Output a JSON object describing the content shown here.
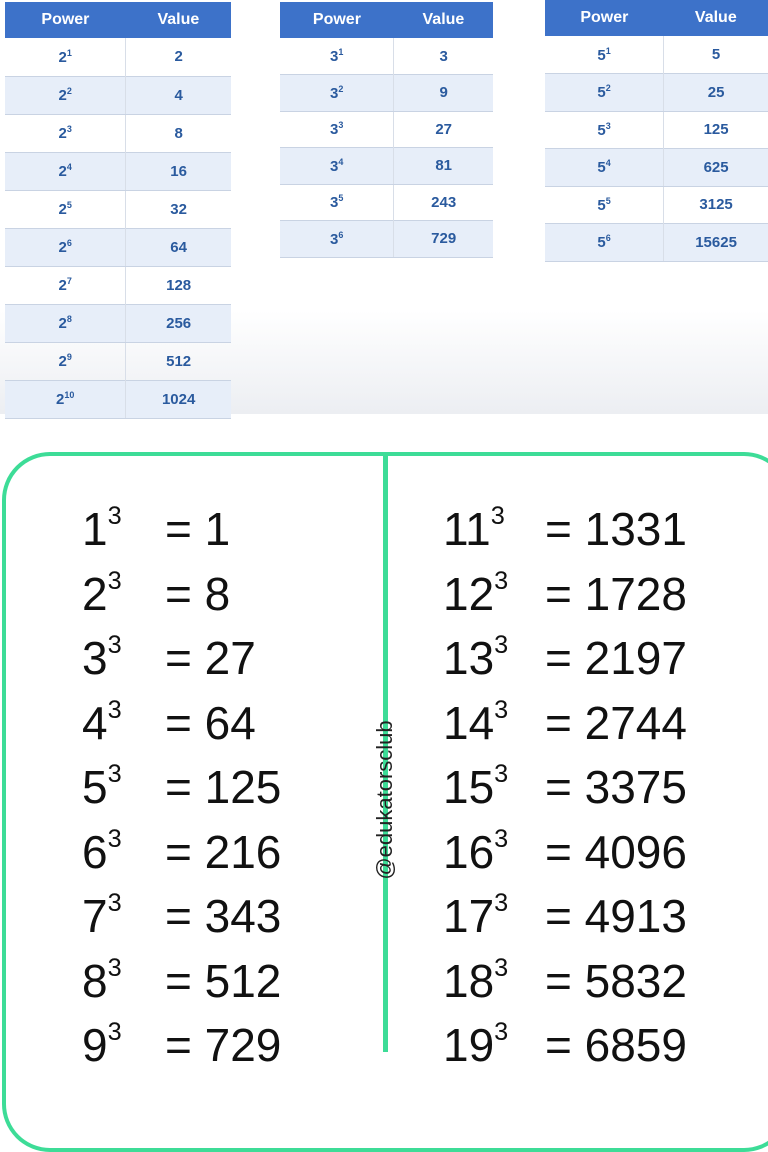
{
  "tables": [
    {
      "headers": [
        "Power",
        "Value"
      ],
      "rows": [
        {
          "base": "2",
          "exp": "1",
          "value": "2"
        },
        {
          "base": "2",
          "exp": "2",
          "value": "4"
        },
        {
          "base": "2",
          "exp": "3",
          "value": "8"
        },
        {
          "base": "2",
          "exp": "4",
          "value": "16"
        },
        {
          "base": "2",
          "exp": "5",
          "value": "32"
        },
        {
          "base": "2",
          "exp": "6",
          "value": "64"
        },
        {
          "base": "2",
          "exp": "7",
          "value": "128"
        },
        {
          "base": "2",
          "exp": "8",
          "value": "256"
        },
        {
          "base": "2",
          "exp": "9",
          "value": "512"
        },
        {
          "base": "2",
          "exp": "10",
          "value": "1024"
        }
      ]
    },
    {
      "headers": [
        "Power",
        "Value"
      ],
      "rows": [
        {
          "base": "3",
          "exp": "1",
          "value": "3"
        },
        {
          "base": "3",
          "exp": "2",
          "value": "9"
        },
        {
          "base": "3",
          "exp": "3",
          "value": "27"
        },
        {
          "base": "3",
          "exp": "4",
          "value": "81"
        },
        {
          "base": "3",
          "exp": "5",
          "value": "243"
        },
        {
          "base": "3",
          "exp": "6",
          "value": "729"
        }
      ]
    },
    {
      "headers": [
        "Power",
        "Value"
      ],
      "rows": [
        {
          "base": "5",
          "exp": "1",
          "value": "5"
        },
        {
          "base": "5",
          "exp": "2",
          "value": "25"
        },
        {
          "base": "5",
          "exp": "3",
          "value": "125"
        },
        {
          "base": "5",
          "exp": "4",
          "value": "625"
        },
        {
          "base": "5",
          "exp": "5",
          "value": "3125"
        },
        {
          "base": "5",
          "exp": "6",
          "value": "15625"
        }
      ]
    }
  ],
  "cubes": {
    "left": [
      {
        "base": "1",
        "exp": "3",
        "value": "= 1"
      },
      {
        "base": "2",
        "exp": "3",
        "value": "= 8"
      },
      {
        "base": "3",
        "exp": "3",
        "value": "= 27"
      },
      {
        "base": "4",
        "exp": "3",
        "value": "= 64"
      },
      {
        "base": "5",
        "exp": "3",
        "value": "= 125"
      },
      {
        "base": "6",
        "exp": "3",
        "value": "= 216"
      },
      {
        "base": "7",
        "exp": "3",
        "value": "= 343"
      },
      {
        "base": "8",
        "exp": "3",
        "value": "= 512"
      },
      {
        "base": "9",
        "exp": "3",
        "value": "= 729"
      }
    ],
    "right": [
      {
        "base": "11",
        "exp": "3",
        "value": "= 1331"
      },
      {
        "base": "12",
        "exp": "3",
        "value": "= 1728"
      },
      {
        "base": "13",
        "exp": "3",
        "value": "= 2197"
      },
      {
        "base": "14",
        "exp": "3",
        "value": "= 2744"
      },
      {
        "base": "15",
        "exp": "3",
        "value": "= 3375"
      },
      {
        "base": "16",
        "exp": "3",
        "value": "= 4096"
      },
      {
        "base": "17",
        "exp": "3",
        "value": "= 4913"
      },
      {
        "base": "18",
        "exp": "3",
        "value": "= 5832"
      },
      {
        "base": "19",
        "exp": "3",
        "value": "= 6859"
      }
    ]
  },
  "watermark": "@edukatorsclub",
  "colors": {
    "header": "#3d72c9",
    "text": "#2a5a9e",
    "frame": "#3ddc97"
  }
}
